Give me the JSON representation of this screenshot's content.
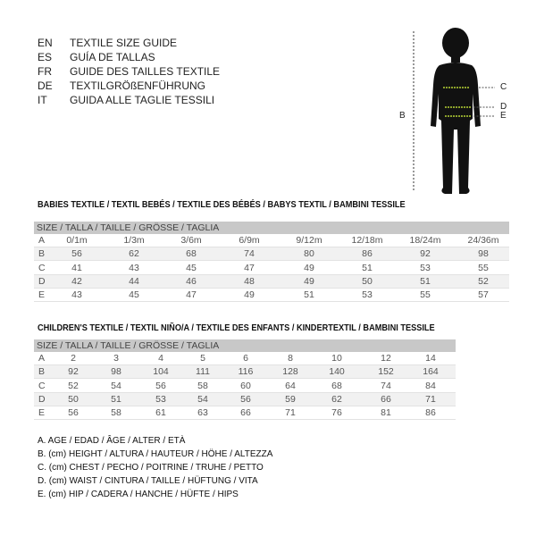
{
  "languages": [
    {
      "code": "EN",
      "text": "TEXTILE SIZE GUIDE"
    },
    {
      "code": "ES",
      "text": "GUÍA DE TALLAS"
    },
    {
      "code": "FR",
      "text": "GUIDE DES TAILLES TEXTILE"
    },
    {
      "code": "DE",
      "text": "TEXTILGRÖßENFÜHRUNG"
    },
    {
      "code": "IT",
      "text": "GUIDA ALLE TAGLIE TESSILI"
    }
  ],
  "figure": {
    "labels": {
      "b": "B",
      "c": "C",
      "d": "D",
      "e": "E"
    },
    "accent": "#b5d334"
  },
  "babies": {
    "title": "BABIES TEXTILE / TEXTIL BEBÉS / TEXTILE DES BÉBÉS / BABYS TEXTIL  / BAMBINI TESSILE",
    "header": "SIZE / TALLA / TAILLE / GRÖSSE / TAGLIA",
    "rows": [
      {
        "key": "A",
        "values": [
          "0/1m",
          "1/3m",
          "3/6m",
          "6/9m",
          "9/12m",
          "12/18m",
          "18/24m",
          "24/36m"
        ]
      },
      {
        "key": "B",
        "values": [
          "56",
          "62",
          "68",
          "74",
          "80",
          "86",
          "92",
          "98"
        ]
      },
      {
        "key": "C",
        "values": [
          "41",
          "43",
          "45",
          "47",
          "49",
          "51",
          "53",
          "55"
        ]
      },
      {
        "key": "D",
        "values": [
          "42",
          "44",
          "46",
          "48",
          "49",
          "50",
          "51",
          "52"
        ]
      },
      {
        "key": "E",
        "values": [
          "43",
          "45",
          "47",
          "49",
          "51",
          "53",
          "55",
          "57"
        ]
      }
    ]
  },
  "children": {
    "title": "CHILDREN'S TEXTILE / TEXTIL NIÑO/A / TEXTILE DES ENFANTS / KINDERTEXTIL / BAMBINI TESSILE",
    "header": "SIZE / TALLA / TAILLE / GRÖSSE / TAGLIA",
    "rows": [
      {
        "key": "A",
        "values": [
          "2",
          "3",
          "4",
          "5",
          "6",
          "8",
          "10",
          "12",
          "14"
        ]
      },
      {
        "key": "B",
        "values": [
          "92",
          "98",
          "104",
          "111",
          "116",
          "128",
          "140",
          "152",
          "164"
        ]
      },
      {
        "key": "C",
        "values": [
          "52",
          "54",
          "56",
          "58",
          "60",
          "64",
          "68",
          "74",
          "84"
        ]
      },
      {
        "key": "D",
        "values": [
          "50",
          "51",
          "53",
          "54",
          "56",
          "59",
          "62",
          "66",
          "71"
        ]
      },
      {
        "key": "E",
        "values": [
          "56",
          "58",
          "61",
          "63",
          "66",
          "71",
          "76",
          "81",
          "86"
        ]
      }
    ]
  },
  "legend": [
    "A. AGE / EDAD / ÂGE / ALTER / ETÀ",
    "B. (cm) HEIGHT / ALTURA / HAUTEUR / HÖHE / ALTEZZA",
    "C. (cm) CHEST / PECHO / POITRINE / TRUHE / PETTO",
    "D. (cm) WAIST / CINTURA / TAILLE / HÜFTUNG / VITA",
    "E. (cm) HIP / CADERA / HANCHE / HÜFTE / HIPS"
  ]
}
